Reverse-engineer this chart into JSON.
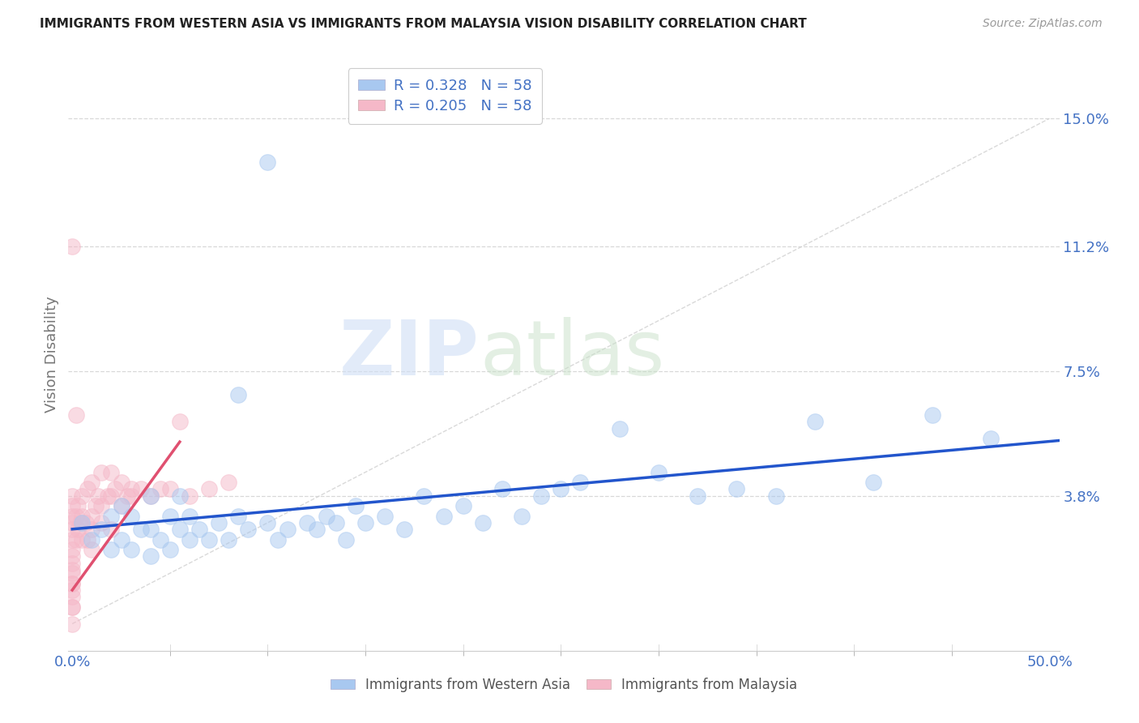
{
  "title": "IMMIGRANTS FROM WESTERN ASIA VS IMMIGRANTS FROM MALAYSIA VISION DISABILITY CORRELATION CHART",
  "source": "Source: ZipAtlas.com",
  "ylabel": "Vision Disability",
  "x_tick_labels_shown": [
    "0.0%",
    "50.0%"
  ],
  "x_tick_positions_shown": [
    0.0,
    0.5
  ],
  "x_minor_ticks": [
    0.05,
    0.1,
    0.15,
    0.2,
    0.25,
    0.3,
    0.35,
    0.4,
    0.45
  ],
  "y_tick_labels": [
    "15.0%",
    "11.2%",
    "7.5%",
    "3.8%"
  ],
  "y_tick_values": [
    0.15,
    0.112,
    0.075,
    0.038
  ],
  "xlim": [
    -0.002,
    0.505
  ],
  "ylim": [
    -0.008,
    0.168
  ],
  "legend_entries": [
    {
      "label": "R = 0.328   N = 58",
      "color": "#a8c8f0"
    },
    {
      "label": "R = 0.205   N = 58",
      "color": "#f5b8c8"
    }
  ],
  "color_blue": "#a8c8f0",
  "color_pink": "#f5b8c8",
  "color_blue_line": "#2255cc",
  "color_pink_line": "#e05070",
  "color_diag_line": "#d0d0d0",
  "color_grid": "#d8d8d8",
  "color_text_blue": "#4472c4",
  "background_color": "#ffffff",
  "watermark_zip": "ZIP",
  "watermark_atlas": "atlas",
  "blue_scatter_x": [
    0.005,
    0.01,
    0.015,
    0.02,
    0.02,
    0.025,
    0.025,
    0.03,
    0.03,
    0.035,
    0.04,
    0.04,
    0.04,
    0.045,
    0.05,
    0.05,
    0.055,
    0.055,
    0.06,
    0.06,
    0.065,
    0.07,
    0.075,
    0.08,
    0.085,
    0.09,
    0.1,
    0.105,
    0.11,
    0.12,
    0.125,
    0.13,
    0.135,
    0.14,
    0.145,
    0.15,
    0.16,
    0.17,
    0.18,
    0.19,
    0.2,
    0.21,
    0.22,
    0.23,
    0.24,
    0.25,
    0.26,
    0.28,
    0.3,
    0.32,
    0.34,
    0.36,
    0.38,
    0.41,
    0.44,
    0.47,
    0.1,
    0.085
  ],
  "blue_scatter_y": [
    0.03,
    0.025,
    0.028,
    0.022,
    0.032,
    0.025,
    0.035,
    0.022,
    0.032,
    0.028,
    0.02,
    0.028,
    0.038,
    0.025,
    0.022,
    0.032,
    0.028,
    0.038,
    0.025,
    0.032,
    0.028,
    0.025,
    0.03,
    0.025,
    0.032,
    0.028,
    0.03,
    0.025,
    0.028,
    0.03,
    0.028,
    0.032,
    0.03,
    0.025,
    0.035,
    0.03,
    0.032,
    0.028,
    0.038,
    0.032,
    0.035,
    0.03,
    0.04,
    0.032,
    0.038,
    0.04,
    0.042,
    0.058,
    0.045,
    0.038,
    0.04,
    0.038,
    0.06,
    0.042,
    0.062,
    0.055,
    0.137,
    0.068
  ],
  "pink_scatter_x": [
    0.0,
    0.0,
    0.0,
    0.0,
    0.0,
    0.0,
    0.0,
    0.0,
    0.0,
    0.0,
    0.0,
    0.0,
    0.0,
    0.0,
    0.0,
    0.0,
    0.0,
    0.0,
    0.002,
    0.002,
    0.003,
    0.003,
    0.004,
    0.005,
    0.005,
    0.005,
    0.007,
    0.008,
    0.008,
    0.01,
    0.01,
    0.01,
    0.01,
    0.012,
    0.013,
    0.015,
    0.015,
    0.015,
    0.018,
    0.02,
    0.02,
    0.02,
    0.022,
    0.025,
    0.025,
    0.028,
    0.03,
    0.03,
    0.035,
    0.04,
    0.045,
    0.05,
    0.055,
    0.06,
    0.07,
    0.08,
    0.0,
    0.002
  ],
  "pink_scatter_y": [
    0.005,
    0.01,
    0.012,
    0.015,
    0.018,
    0.02,
    0.022,
    0.025,
    0.028,
    0.03,
    0.032,
    0.035,
    0.008,
    0.012,
    0.016,
    0.0,
    0.005,
    0.038,
    0.025,
    0.032,
    0.028,
    0.035,
    0.03,
    0.025,
    0.032,
    0.038,
    0.03,
    0.025,
    0.04,
    0.028,
    0.032,
    0.022,
    0.042,
    0.035,
    0.038,
    0.03,
    0.035,
    0.045,
    0.038,
    0.028,
    0.038,
    0.045,
    0.04,
    0.035,
    0.042,
    0.038,
    0.04,
    0.038,
    0.04,
    0.038,
    0.04,
    0.04,
    0.06,
    0.038,
    0.04,
    0.042,
    0.112,
    0.062
  ],
  "pink_line_x": [
    0.0,
    0.055
  ],
  "pink_line_y_start": 0.01,
  "pink_line_slope": 0.8
}
